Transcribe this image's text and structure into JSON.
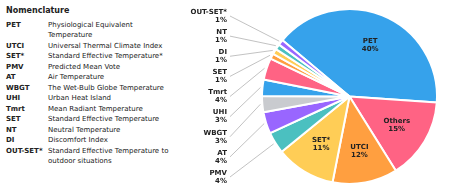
{
  "chart_data": {
    "type": "pie",
    "categories": [
      "PET",
      "Others",
      "UTCI",
      "SET*",
      "PMV",
      "AT",
      "WBGT",
      "UHI",
      "Tmrt",
      "SET",
      "DI",
      "NT",
      "OUT-SET*"
    ],
    "values": [
      40,
      15,
      12,
      11,
      4,
      4,
      3,
      3,
      4,
      1,
      1,
      1,
      1
    ],
    "value_labels": [
      "40%",
      "15%",
      "12%",
      "11%",
      "4%",
      "4%",
      "3%",
      "3%",
      "4%",
      "1%",
      "1%",
      "1%",
      "1%"
    ],
    "data_labels": true,
    "annotations": [
      [
        "Nomenclature"
      ],
      [
        "PET",
        "Physiological Equivalent Temperature"
      ],
      [
        "UTCI",
        "Universal Thermal Climate Index"
      ],
      [
        "SET*",
        "Standard Effective Temperature*"
      ],
      [
        "PMV",
        "Predicted Mean Vote"
      ],
      [
        "AT",
        "Air Temperature"
      ],
      [
        "WBGT",
        "The Wet-Bulb Globe Temperature"
      ],
      [
        "UHI",
        "Urban Heat Island"
      ],
      [
        "Tmrt",
        "Mean Radiant Temperature"
      ],
      [
        "SET",
        "Standard Effective Temperature"
      ],
      [
        "NT",
        "Neutral Temperature"
      ],
      [
        "DI",
        "Discomfort Index"
      ],
      [
        "OUT-SET*",
        "Standard Effective Temperature to\noutdoor situations"
      ]
    ]
  }
}
